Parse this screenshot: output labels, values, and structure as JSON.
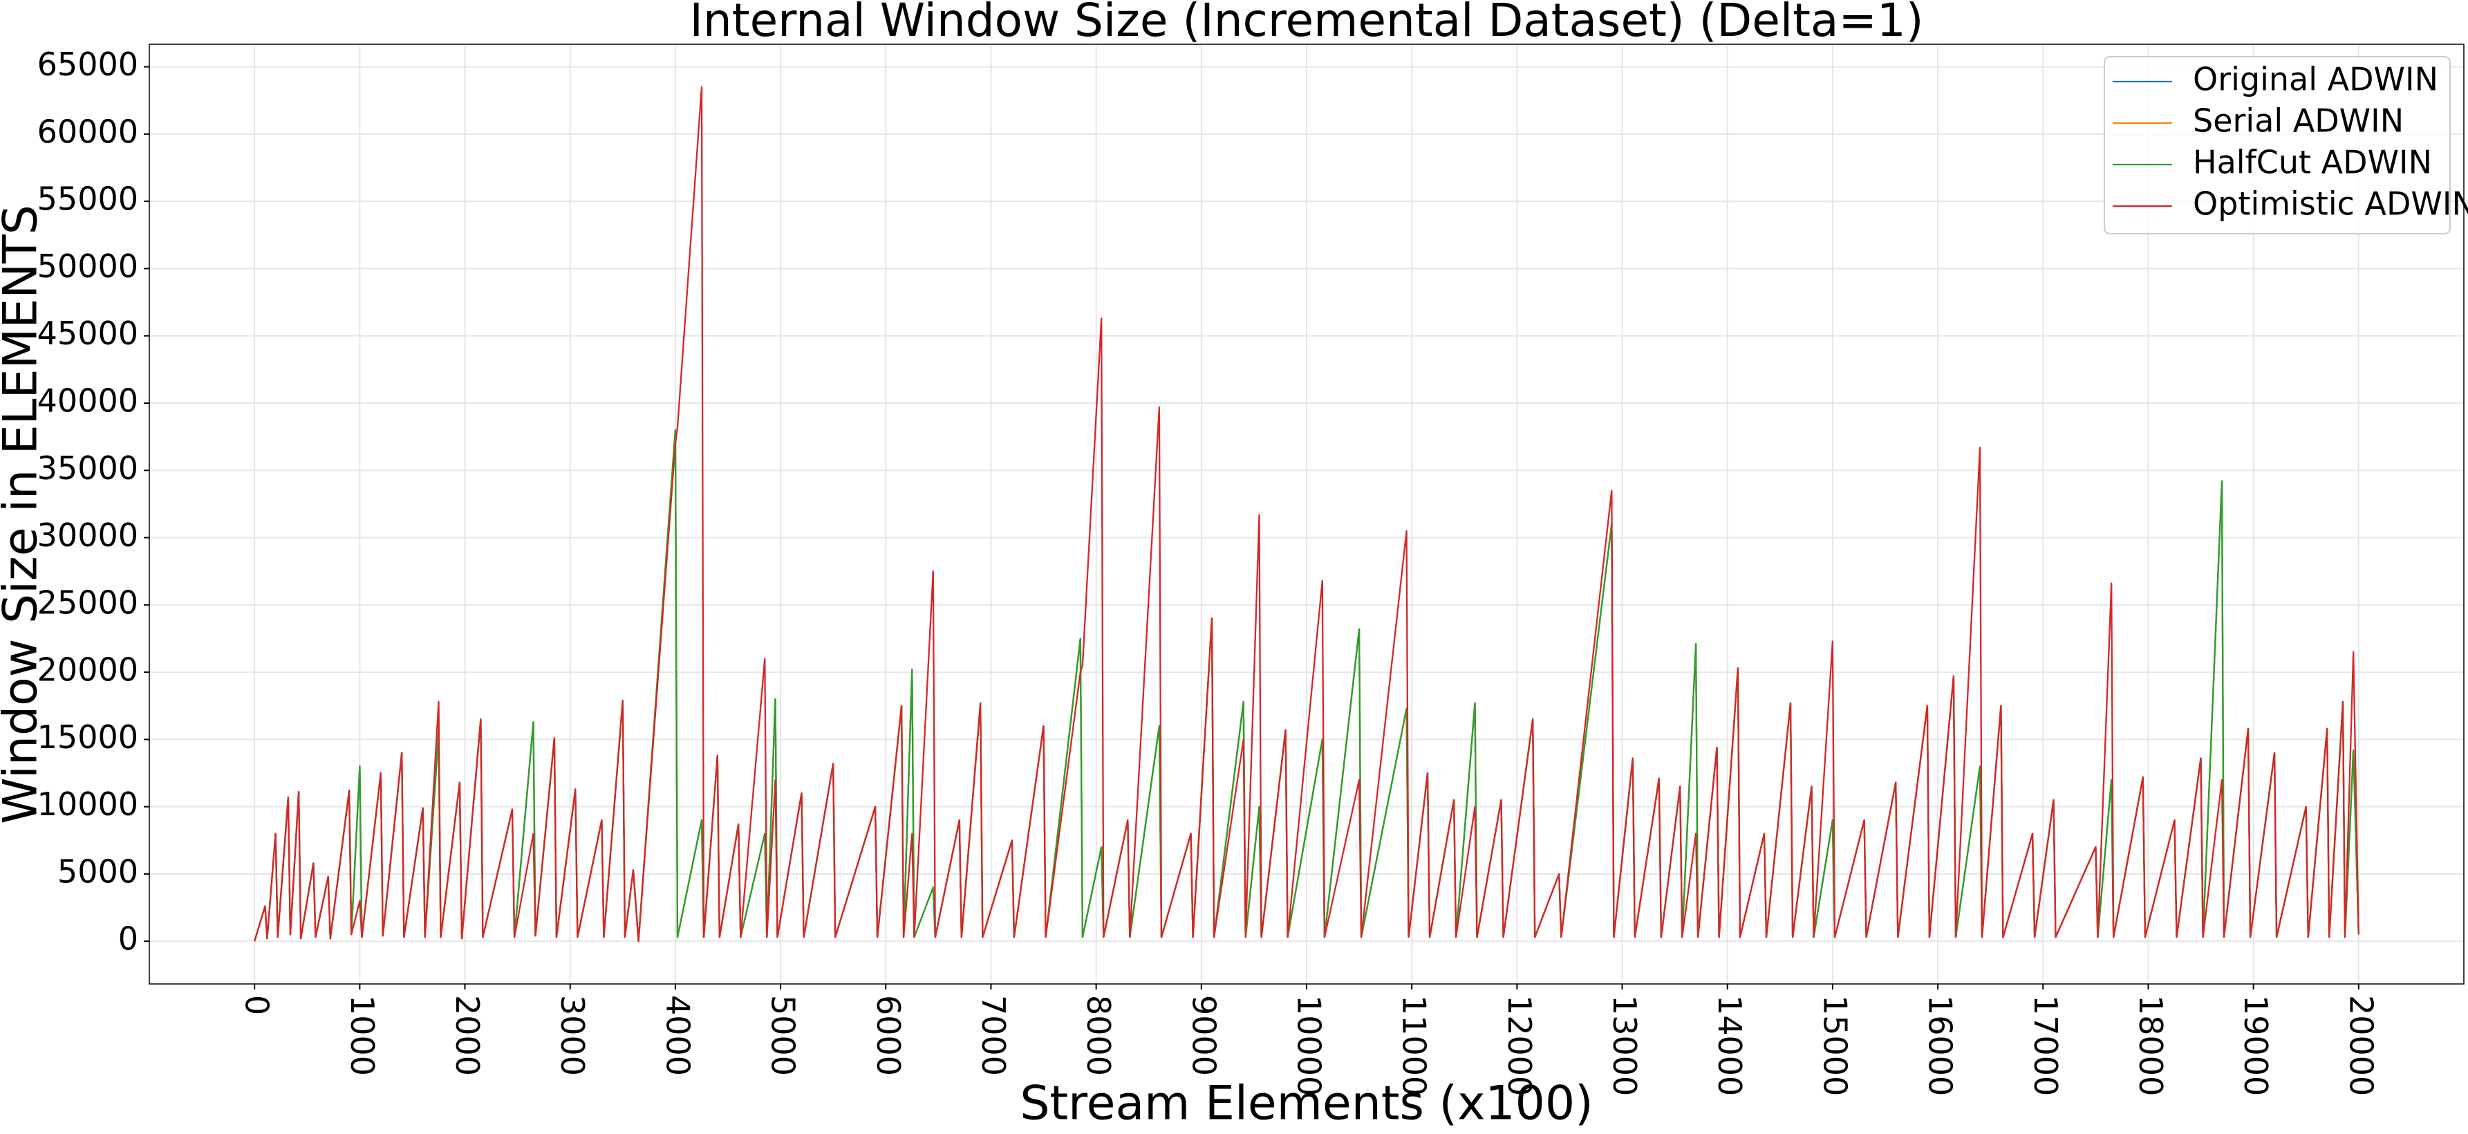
{
  "chart_data": {
    "type": "line",
    "title": "Internal Window Size (Incremental Dataset) (Delta=1)",
    "x_label": "Stream Elements (x100)",
    "y_label": "Window Size in ELEMENTS",
    "xlim": [
      -1000,
      21000
    ],
    "ylim": [
      -3175,
      66675
    ],
    "xticks": [
      0,
      1000,
      2000,
      3000,
      4000,
      5000,
      6000,
      7000,
      8000,
      9000,
      10000,
      11000,
      12000,
      13000,
      14000,
      15000,
      16000,
      17000,
      18000,
      19000,
      20000
    ],
    "yticks": [
      0,
      5000,
      10000,
      15000,
      20000,
      25000,
      30000,
      35000,
      40000,
      45000,
      50000,
      55000,
      60000,
      65000
    ],
    "grid": true,
    "legend": "upper right",
    "x": [
      0,
      100,
      120,
      200,
      220,
      320,
      340,
      420,
      440,
      560,
      580,
      700,
      720,
      900,
      920,
      1000,
      1020,
      1200,
      1220,
      1400,
      1420,
      1600,
      1620,
      1750,
      1770,
      1950,
      1970,
      2150,
      2170,
      2450,
      2470,
      2650,
      2670,
      2850,
      2870,
      3050,
      3070,
      3300,
      3320,
      3500,
      3520,
      3600,
      3650,
      4000,
      4020,
      4250,
      4270,
      4400,
      4420,
      4600,
      4620,
      4850,
      4870,
      4950,
      4970,
      5200,
      5220,
      5500,
      5520,
      5900,
      5920,
      6150,
      6170,
      6250,
      6270,
      6450,
      6470,
      6700,
      6720,
      6900,
      6920,
      7200,
      7220,
      7500,
      7520,
      7850,
      7870,
      8050,
      8070,
      8300,
      8320,
      8600,
      8620,
      8900,
      8920,
      9100,
      9120,
      9400,
      9420,
      9550,
      9570,
      9800,
      9820,
      10150,
      10170,
      10500,
      10520,
      10950,
      10970,
      11150,
      11170,
      11400,
      11420,
      11600,
      11620,
      11850,
      11870,
      12150,
      12170,
      12400,
      12420,
      12900,
      12920,
      13100,
      13120,
      13350,
      13370,
      13550,
      13570,
      13700,
      13720,
      13900,
      13920,
      14100,
      14120,
      14350,
      14370,
      14600,
      14620,
      14800,
      14820,
      15000,
      15020,
      15300,
      15320,
      15600,
      15620,
      15900,
      15920,
      16150,
      16170,
      16400,
      16420,
      16600,
      16620,
      16900,
      16920,
      17100,
      17120,
      17500,
      17520,
      17650,
      17670,
      17950,
      17970,
      18250,
      18270,
      18500,
      18520,
      18700,
      18720,
      18950,
      18970,
      19200,
      19220,
      19500,
      19520,
      19700,
      19720,
      19850,
      19870,
      19950,
      20000
    ],
    "series": [
      {
        "name": "Original ADWIN",
        "color": "#1f77b4",
        "values": [
          0,
          2600,
          200,
          8000,
          300,
          10700,
          500,
          11100,
          200,
          5800,
          300,
          4800,
          200,
          11200,
          500,
          13000,
          300,
          12500,
          400,
          14000,
          300,
          9900,
          300,
          15500,
          300,
          11800,
          200,
          16500,
          300,
          9800,
          300,
          16300,
          400,
          15100,
          300,
          11300,
          300,
          9000,
          300,
          17900,
          300,
          5300,
          0,
          38000,
          300,
          9000,
          300,
          13800,
          300,
          8700,
          300,
          8000,
          300,
          18000,
          300,
          11000,
          300,
          13200,
          300,
          10000,
          300,
          17500,
          300,
          20200,
          300,
          4000,
          300,
          9000,
          300,
          17700,
          300,
          7500,
          300,
          16000,
          300,
          22500,
          300,
          7000,
          300,
          9000,
          300,
          16000,
          300,
          8000,
          300,
          24000,
          300,
          17800,
          300,
          10000,
          300,
          15700,
          300,
          15000,
          300,
          23200,
          300,
          17300,
          300,
          12500,
          300,
          10500,
          300,
          17700,
          300,
          10500,
          300,
          16500,
          300,
          5000,
          300,
          31000,
          300,
          13600,
          300,
          12100,
          300,
          11500,
          300,
          22100,
          300,
          14400,
          300,
          20300,
          300,
          8000,
          300,
          17700,
          300,
          11500,
          300,
          9000,
          300,
          9000,
          300,
          11800,
          300,
          17500,
          300,
          19700,
          300,
          13000,
          300,
          17500,
          300,
          8000,
          300,
          10500,
          300,
          7000,
          300,
          12000,
          300,
          12200,
          300,
          9000,
          300,
          13600,
          300,
          34200,
          300,
          15800,
          300,
          14000,
          300,
          10000,
          300,
          15800,
          300,
          17800,
          300,
          14200,
          500
        ]
      },
      {
        "name": "Serial ADWIN",
        "color": "#ff7f0e",
        "values": [
          0,
          2600,
          200,
          8000,
          300,
          10700,
          500,
          11100,
          200,
          5800,
          300,
          4800,
          200,
          11200,
          500,
          13000,
          300,
          12500,
          400,
          14000,
          300,
          9900,
          300,
          15500,
          300,
          11800,
          200,
          16500,
          300,
          9800,
          300,
          16300,
          400,
          15100,
          300,
          11300,
          300,
          9000,
          300,
          17900,
          300,
          5300,
          0,
          38000,
          300,
          9000,
          300,
          13800,
          300,
          8700,
          300,
          8000,
          300,
          18000,
          300,
          11000,
          300,
          13200,
          300,
          10000,
          300,
          17500,
          300,
          20200,
          300,
          4000,
          300,
          9000,
          300,
          17700,
          300,
          7500,
          300,
          16000,
          300,
          22500,
          300,
          7000,
          300,
          9000,
          300,
          16000,
          300,
          8000,
          300,
          24000,
          300,
          17800,
          300,
          10000,
          300,
          15700,
          300,
          15000,
          300,
          23200,
          300,
          17300,
          300,
          12500,
          300,
          10500,
          300,
          17700,
          300,
          10500,
          300,
          16500,
          300,
          5000,
          300,
          31000,
          300,
          13600,
          300,
          12100,
          300,
          11500,
          300,
          22100,
          300,
          14400,
          300,
          20300,
          300,
          8000,
          300,
          17700,
          300,
          11500,
          300,
          9000,
          300,
          9000,
          300,
          11800,
          300,
          17500,
          300,
          19700,
          300,
          13000,
          300,
          17500,
          300,
          8000,
          300,
          10500,
          300,
          7000,
          300,
          12000,
          300,
          12200,
          300,
          9000,
          300,
          13600,
          300,
          34200,
          300,
          15800,
          300,
          14000,
          300,
          10000,
          300,
          15800,
          300,
          17800,
          300,
          14200,
          500
        ]
      },
      {
        "name": "HalfCut ADWIN",
        "color": "#2ca02c",
        "values": [
          0,
          2600,
          200,
          8000,
          300,
          10700,
          500,
          11100,
          200,
          5800,
          300,
          4800,
          200,
          11200,
          500,
          13000,
          300,
          12500,
          400,
          14000,
          300,
          9900,
          300,
          15500,
          300,
          11800,
          200,
          16500,
          300,
          9800,
          300,
          16300,
          400,
          15100,
          300,
          11300,
          300,
          9000,
          300,
          17900,
          300,
          5300,
          0,
          38000,
          300,
          9000,
          300,
          13800,
          300,
          8700,
          300,
          8000,
          300,
          18000,
          300,
          11000,
          300,
          13200,
          300,
          10000,
          300,
          17500,
          300,
          20200,
          300,
          4000,
          300,
          9000,
          300,
          17700,
          300,
          7500,
          300,
          16000,
          300,
          22500,
          300,
          7000,
          300,
          9000,
          300,
          16000,
          300,
          8000,
          300,
          24000,
          300,
          17800,
          300,
          10000,
          300,
          15700,
          300,
          15000,
          300,
          23200,
          300,
          17300,
          300,
          12500,
          300,
          10500,
          300,
          17700,
          300,
          10500,
          300,
          16500,
          300,
          5000,
          300,
          31000,
          300,
          13600,
          300,
          12100,
          300,
          11500,
          300,
          22100,
          300,
          14400,
          300,
          20300,
          300,
          8000,
          300,
          17700,
          300,
          11500,
          300,
          9000,
          300,
          9000,
          300,
          11800,
          300,
          17500,
          300,
          19700,
          300,
          13000,
          300,
          17500,
          300,
          8000,
          300,
          10500,
          300,
          7000,
          300,
          12000,
          300,
          12200,
          300,
          9000,
          300,
          13600,
          300,
          34200,
          300,
          15800,
          300,
          14000,
          300,
          10000,
          300,
          15800,
          300,
          17800,
          300,
          14200,
          500
        ]
      },
      {
        "name": "Optimistic ADWIN",
        "color": "#d62728",
        "values": [
          0,
          2600,
          200,
          8000,
          300,
          10700,
          500,
          11100,
          200,
          5800,
          300,
          4800,
          200,
          11200,
          500,
          3000,
          300,
          12500,
          400,
          14000,
          300,
          9900,
          300,
          17800,
          300,
          11800,
          200,
          16500,
          300,
          9800,
          300,
          8000,
          400,
          15100,
          300,
          11300,
          300,
          9000,
          300,
          17900,
          300,
          5300,
          0,
          37000,
          38200,
          63500,
          300,
          13800,
          300,
          8700,
          300,
          21000,
          300,
          12000,
          300,
          11000,
          300,
          13200,
          300,
          10000,
          300,
          17500,
          300,
          8000,
          300,
          27500,
          300,
          9000,
          300,
          17700,
          300,
          7500,
          300,
          16000,
          300,
          20000,
          20500,
          46300,
          300,
          9000,
          300,
          39700,
          300,
          8000,
          300,
          24000,
          300,
          15000,
          300,
          31700,
          300,
          15700,
          300,
          26800,
          300,
          12000,
          300,
          30500,
          300,
          12500,
          300,
          10500,
          300,
          10000,
          300,
          10500,
          300,
          16500,
          300,
          5000,
          300,
          33500,
          300,
          13600,
          300,
          12100,
          300,
          11500,
          300,
          8000,
          300,
          14400,
          300,
          20300,
          300,
          8000,
          300,
          17700,
          300,
          11500,
          300,
          22300,
          300,
          9000,
          300,
          11800,
          300,
          17500,
          300,
          19700,
          300,
          36700,
          300,
          17500,
          300,
          8000,
          300,
          10500,
          300,
          7000,
          300,
          26600,
          300,
          12200,
          300,
          9000,
          300,
          13600,
          300,
          12000,
          300,
          15800,
          300,
          14000,
          300,
          10000,
          300,
          15800,
          300,
          17800,
          300,
          21500,
          500
        ]
      }
    ]
  }
}
